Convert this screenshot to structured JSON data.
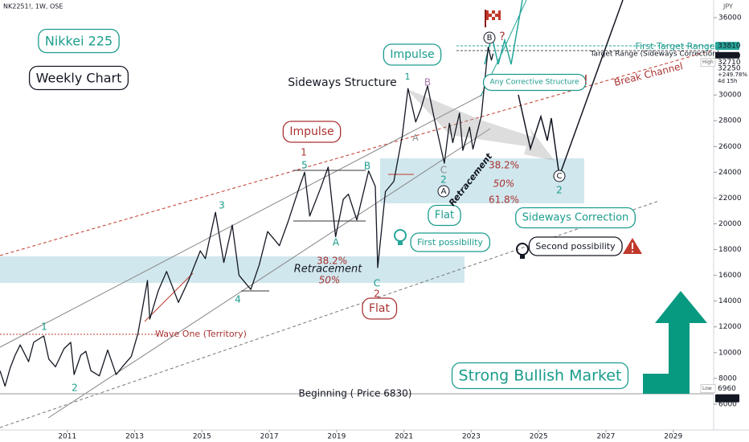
{
  "chart_data": {
    "type": "line",
    "title": "NK2251!, 1W, OSE",
    "currency": "JPY",
    "x": [
      2009.0,
      2009.15,
      2009.3,
      2009.45,
      2009.6,
      2009.85,
      2010.0,
      2010.3,
      2010.45,
      2010.65,
      2010.9,
      2011.1,
      2011.2,
      2011.4,
      2011.55,
      2011.7,
      2011.95,
      2012.2,
      2012.45,
      2012.7,
      2012.9,
      2013.1,
      2013.38,
      2013.45,
      2013.7,
      2013.95,
      2014.3,
      2014.6,
      2014.95,
      2015.1,
      2015.4,
      2015.65,
      2015.9,
      2016.1,
      2016.45,
      2016.7,
      2016.95,
      2017.3,
      2017.55,
      2017.9,
      2018.05,
      2018.2,
      2018.5,
      2018.75,
      2018.97,
      2019.2,
      2019.35,
      2019.6,
      2019.95,
      2020.15,
      2020.22,
      2020.45,
      2020.7,
      2020.95,
      2021.12,
      2021.35,
      2021.5,
      2021.7,
      2021.9,
      2022.2,
      2022.35,
      2022.45,
      2022.65,
      2022.75,
      2022.95,
      2023.05,
      2023.3,
      2023.5,
      2023.6,
      2023.65
    ],
    "values": [
      8600,
      7400,
      8800,
      9800,
      10600,
      9300,
      10800,
      11300,
      9500,
      8900,
      10300,
      10800,
      8300,
      9800,
      10100,
      8600,
      8200,
      10200,
      8300,
      9100,
      9700,
      11500,
      15600,
      12600,
      14800,
      16300,
      13900,
      15600,
      17900,
      17300,
      20900,
      17000,
      19900,
      16000,
      14900,
      16800,
      19400,
      18300,
      20100,
      22900,
      24000,
      20600,
      22600,
      24400,
      19000,
      21900,
      22300,
      20300,
      24100,
      22900,
      16600,
      22500,
      23300,
      26800,
      30500,
      27900,
      28900,
      30700,
      28200,
      24700,
      27800,
      26300,
      28600,
      25700,
      27500,
      25800,
      28400,
      33700,
      32700,
      33210
    ],
    "color": "#131722",
    "xlim": [
      2009,
      2030.2
    ],
    "xticks": [
      2011,
      2013,
      2015,
      2017,
      2019,
      2021,
      2023,
      2025,
      2027,
      2029
    ],
    "ylim": [
      4000,
      37370
    ],
    "yticks": [
      6000,
      8000,
      10000,
      12000,
      14000,
      16000,
      18000,
      20000,
      22000,
      24000,
      26000,
      28000,
      30000,
      36000
    ],
    "price_markers": [
      {
        "value": 33810,
        "color": "#26a69a"
      },
      {
        "value": 33210,
        "color": "#131722"
      },
      {
        "value": 32710,
        "tag": "High",
        "color": "#ffffff"
      },
      {
        "value": 32250,
        "color": "#ffffff"
      },
      {
        "value": 6960,
        "tag": "Low",
        "color": "#ffffff"
      },
      {
        "value": 6830,
        "color": "#131722"
      }
    ],
    "current_change": "+249.78%",
    "countdown": "4d 15h",
    "annotations": [
      "Nikkei 225",
      "Weekly Chart",
      "Impulse",
      "Sideways Structure",
      "Impulse",
      "1",
      "5",
      "3",
      "A",
      "4",
      "B",
      "C",
      "2",
      "Flat",
      "38.2%",
      "Retracement",
      "50%",
      "1",
      "2",
      "Wave One (Territory)",
      "Beginning ( Price 6830)",
      "Strong Bullish Market",
      "First possibility",
      "Second possibility",
      "Sideways Correction",
      "Flat",
      "A",
      "C",
      "2",
      "Retracement",
      "38.2%",
      "50%",
      "61.8%",
      "C",
      "2",
      "1",
      "B",
      "A",
      "B",
      "?",
      "Any Corrective Structure",
      "!",
      "Break Channel",
      "First Target Range",
      "Target Range (Sideways Correction)"
    ]
  }
}
